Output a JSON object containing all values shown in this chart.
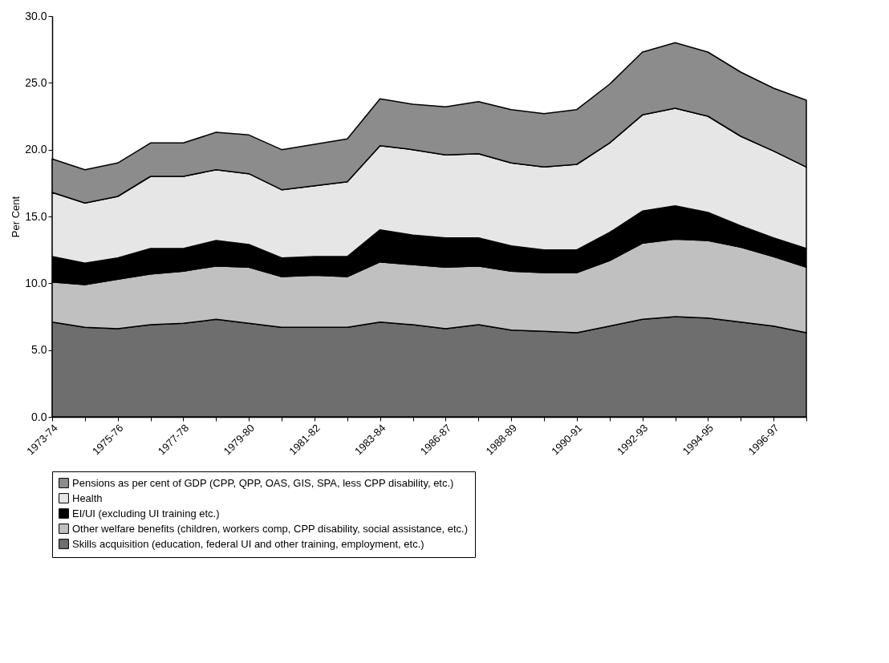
{
  "chart_data": {
    "type": "area",
    "stacked": true,
    "ylabel": "Per Cent",
    "categories": [
      "1973-74",
      null,
      "1975-76",
      null,
      "1977-78",
      null,
      "1979-80",
      null,
      "1981-82",
      null,
      "1983-84",
      null,
      "1986-87",
      null,
      "1988-89",
      null,
      "1990-91",
      null,
      "1992-93",
      null,
      "1994-95",
      null,
      "1996-97",
      null
    ],
    "series": [
      {
        "name": "Skills acquisition (education, federal UI and other training, employment, etc.)",
        "color": "#6e6e6e",
        "values": [
          7.1,
          6.7,
          6.6,
          6.9,
          7.0,
          7.3,
          7.0,
          6.7,
          6.7,
          6.7,
          7.1,
          6.9,
          6.6,
          6.9,
          6.5,
          6.4,
          6.3,
          6.8,
          7.3,
          7.5,
          7.4,
          7.1,
          6.8,
          6.3
        ]
      },
      {
        "name": "Other welfare benefits (children, workers comp, CPP disability, social assistance, etc.)",
        "color": "#c0c0c0",
        "values": [
          3.0,
          3.2,
          3.7,
          3.8,
          3.9,
          4.0,
          4.2,
          3.8,
          3.9,
          3.8,
          4.5,
          4.5,
          4.6,
          4.4,
          4.4,
          4.4,
          4.5,
          4.9,
          5.7,
          5.8,
          5.8,
          5.6,
          5.2,
          4.9
        ]
      },
      {
        "name": "EI/UI  (excluding UI training etc.)",
        "color": "#000000",
        "values": [
          1.9,
          1.6,
          1.6,
          1.9,
          1.7,
          1.9,
          1.7,
          1.4,
          1.4,
          1.5,
          2.4,
          2.2,
          2.2,
          2.1,
          1.9,
          1.7,
          1.7,
          2.1,
          2.4,
          2.5,
          2.1,
          1.6,
          1.4,
          1.4
        ]
      },
      {
        "name": "Health",
        "color": "#e6e6e6",
        "values": [
          4.8,
          4.5,
          4.6,
          5.4,
          5.4,
          5.3,
          5.3,
          5.1,
          5.3,
          5.6,
          6.3,
          6.4,
          6.2,
          6.3,
          6.2,
          6.2,
          6.4,
          6.7,
          7.2,
          7.3,
          7.2,
          6.7,
          6.5,
          6.1
        ]
      },
      {
        "name": "Pensions as per cent of GDP (CPP, QPP, OAS, GIS, SPA, less CPP disability, etc.)",
        "color": "#8c8c8c",
        "values": [
          2.5,
          2.5,
          2.5,
          2.5,
          2.5,
          2.8,
          2.9,
          3.0,
          3.1,
          3.2,
          3.5,
          3.4,
          3.6,
          3.9,
          4.0,
          4.0,
          4.1,
          4.4,
          4.7,
          4.9,
          4.8,
          4.8,
          4.7,
          5.0
        ]
      }
    ],
    "ylim": [
      0,
      30
    ],
    "yticks": [
      {
        "value": 0,
        "label": "0.0"
      },
      {
        "value": 5,
        "label": "5.0"
      },
      {
        "value": 10,
        "label": "10.0"
      },
      {
        "value": 15,
        "label": "15.0"
      },
      {
        "value": 20,
        "label": "20.0"
      },
      {
        "value": 25,
        "label": "25.0"
      },
      {
        "value": 30,
        "label": "30.0"
      }
    ],
    "grid": false,
    "legend": "bottom"
  }
}
